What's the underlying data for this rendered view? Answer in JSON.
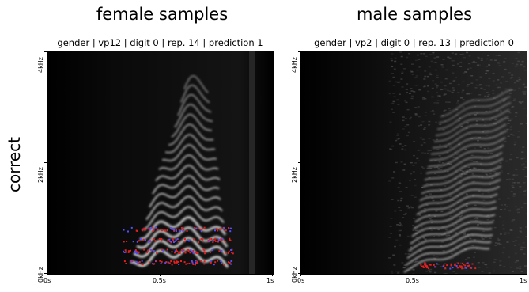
{
  "columns": {
    "left_title": "female samples",
    "right_title": "male samples"
  },
  "row_label": "correct",
  "panels": [
    {
      "title": "gender | vp12 | digit 0 | rep. 14 | prediction 1",
      "y_ticks": [
        "4kHz",
        "2kHz",
        "0kHz"
      ],
      "x_ticks": [
        "0s",
        "0.5s",
        "1s"
      ]
    },
    {
      "title": "gender | vp2 | digit 0 | rep. 13 | prediction 0",
      "y_ticks": [
        "4kHz",
        "2kHz",
        "0kHz"
      ],
      "x_ticks": [
        "0s",
        "0.5s",
        "1s"
      ]
    }
  ],
  "colors": {
    "background": "#000000",
    "harmonic": "#d8d8d8",
    "relevance_positive": "#e02020",
    "relevance_negative": "#5050ff"
  }
}
